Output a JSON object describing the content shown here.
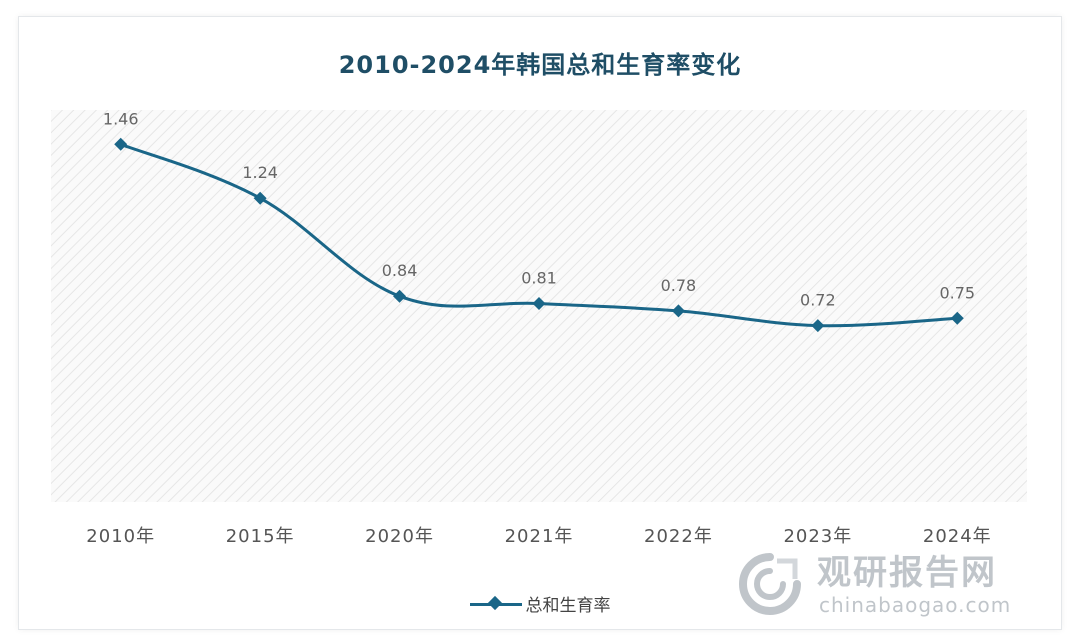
{
  "chart_data": {
    "type": "line",
    "title": "2010-2024年韩国总和生育率变化",
    "categories": [
      "2010年",
      "2015年",
      "2020年",
      "2021年",
      "2022年",
      "2023年",
      "2024年"
    ],
    "series": [
      {
        "name": "总和生育率",
        "values": [
          1.46,
          1.24,
          0.84,
          0.81,
          0.78,
          0.72,
          0.75
        ],
        "labels": [
          "1.46",
          "1.24",
          "0.84",
          "0.81",
          "0.78",
          "0.72",
          "0.75"
        ],
        "color": "#1a6688",
        "marker": "diamond",
        "smooth": true
      }
    ],
    "ylim": [
      0,
      1.6
    ],
    "grid": false,
    "plot_area_fill": "hatched-light-gray",
    "legend": {
      "position": "bottom"
    },
    "title_color": "#1f4e66"
  },
  "watermark": {
    "logo_icon": "chinabaogao-logo-icon",
    "name": "观研报告网",
    "url": "chinabaogao.com"
  }
}
